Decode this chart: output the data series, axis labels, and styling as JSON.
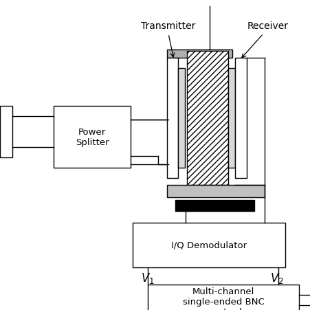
{
  "bg_color": "#ffffff",
  "fig_size": [
    4.52,
    4.52
  ],
  "dpi": 100,
  "labels": {
    "transmitter": "Transmitter",
    "receiver": "Receiver",
    "power_splitter": "Power\nSplitter",
    "iq_demod": "I/Q Demodulator",
    "bnc_box": "Multi-channel\nsingle-ended BNC\nconnector box",
    "v1": "$V_1$",
    "v2": "$V_2$"
  }
}
